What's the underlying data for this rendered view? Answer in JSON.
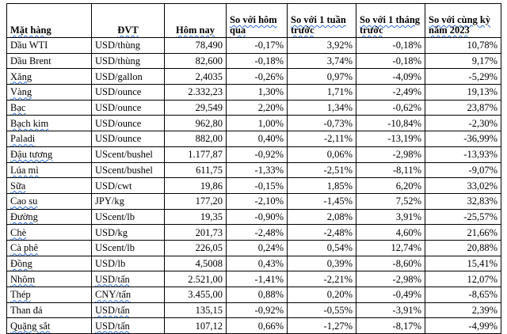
{
  "headers": {
    "name": "Mặt hàng",
    "unit": "ĐVT",
    "today": "Hôm nay",
    "vs_yesterday": "So với hôm qua",
    "vs_week": "So với 1 tuần trước",
    "vs_month": "So với 1 tháng trước",
    "vs_year": "So với cùng kỳ năm 2023"
  },
  "rows": [
    {
      "name": "Dầu WTI",
      "unit": "USD/thùng",
      "today": "78,490",
      "d1": "-0,17%",
      "w1": "3,92%",
      "m1": "-0,18%",
      "y1": "10,78%"
    },
    {
      "name": "Dầu Brent",
      "unit": "USD/thùng",
      "today": "82,600",
      "d1": "-0,18%",
      "w1": "3,74%",
      "m1": "-0,18%",
      "y1": "9,17%"
    },
    {
      "name": "Xăng",
      "unit": "USD/gallon",
      "today": "2,4035",
      "d1": "-0,26%",
      "w1": "0,97%",
      "m1": "-4,09%",
      "y1": "-5,29%"
    },
    {
      "name": "Vàng",
      "unit": "USD/ounce",
      "today": "2.332,23",
      "d1": "1,30%",
      "w1": "1,71%",
      "m1": "-2,49%",
      "y1": "19,13%"
    },
    {
      "name": "Bạc",
      "unit": "USD/ounce",
      "today": "29,549",
      "d1": "2,20%",
      "w1": "1,34%",
      "m1": "-0,62%",
      "y1": "23,87%"
    },
    {
      "name": "Bạch kim",
      "unit": "USD/ounce",
      "today": "962,80",
      "d1": "1,00%",
      "w1": "-0,73%",
      "m1": "-10,84%",
      "y1": "-2,30%"
    },
    {
      "name": "Paladi",
      "unit": "USD/ounce",
      "today": "882,00",
      "d1": "0,40%",
      "w1": "-2,11%",
      "m1": "-13,19%",
      "y1": "-36,99%"
    },
    {
      "name": "Đậu tương",
      "unit": "UScent/bushel",
      "today": "1.177,87",
      "d1": "-0,92%",
      "w1": "0,06%",
      "m1": "-2,98%",
      "y1": "-13,93%"
    },
    {
      "name": "Lúa mì",
      "unit": "UScent/bushel",
      "today": "611,75",
      "d1": "-1,33%",
      "w1": "-2,51%",
      "m1": "-8,11%",
      "y1": "-9,07%"
    },
    {
      "name": "Sữa",
      "unit": "USD/cwt",
      "today": "19,86",
      "d1": "-0,15%",
      "w1": "1,85%",
      "m1": "6,20%",
      "y1": "33,02%"
    },
    {
      "name": "Cao su",
      "unit": "JPY/kg",
      "today": "177,20",
      "d1": "-2,10%",
      "w1": "-1,45%",
      "m1": "7,52%",
      "y1": "32,83%"
    },
    {
      "name": "Đường",
      "unit": "UScent/lb",
      "today": "19,35",
      "d1": "-0,90%",
      "w1": "2,08%",
      "m1": "3,91%",
      "y1": "-25,57%"
    },
    {
      "name": "Chè",
      "unit": "USD/kg",
      "today": "201,73",
      "d1": "-2,48%",
      "w1": "-2,48%",
      "m1": "4,60%",
      "y1": "21,66%"
    },
    {
      "name": "Cà phê",
      "unit": "UScent/lb",
      "today": "226,05",
      "d1": "0,24%",
      "w1": "0,54%",
      "m1": "12,74%",
      "y1": "20,88%"
    },
    {
      "name": "Đồng",
      "unit": "USD/lb",
      "today": "4,5008",
      "d1": "0,43%",
      "w1": "0,39%",
      "m1": "-8,60%",
      "y1": "15,41%"
    },
    {
      "name": "Nhôm",
      "unit": "USD/tấn",
      "today": "2.521,00",
      "d1": "-1,41%",
      "w1": "-2,21%",
      "m1": "-2,98%",
      "y1": "12,07%"
    },
    {
      "name": "Thép",
      "unit": "CNY/tấn",
      "today": "3.455,00",
      "d1": "0,88%",
      "w1": "0,20%",
      "m1": "-0,49%",
      "y1": "-8,65%"
    },
    {
      "name": "Than đá",
      "unit": "USD/tấn",
      "today": "135,15",
      "d1": "-0,92%",
      "w1": "-0,55%",
      "m1": "-3,91%",
      "y1": "2,39%"
    },
    {
      "name": "Quặng sắt",
      "unit": "USD/tấn",
      "today": "107,12",
      "d1": "0,66%",
      "w1": "-1,27%",
      "m1": "-8,17%",
      "y1": "-4,99%"
    }
  ]
}
